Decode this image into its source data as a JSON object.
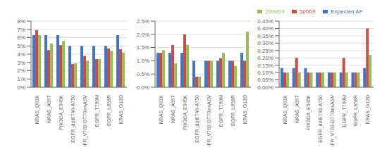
{
  "chart_data": [
    {
      "type": "bar",
      "categories": [
        "NRAS_Q61K",
        "NRAS_A59T",
        "PIK3CA_E545K",
        "EGFR_delE746-A750",
        "EGFR_V769-D770insASV",
        "EGFR_T790M",
        "EGFR_L858R",
        "KRAS_G12D"
      ],
      "series": [
        {
          "name": "Expected AF",
          "color": "#4472C4",
          "values": [
            0.063,
            0.063,
            0.063,
            0.05,
            0.05,
            0.05,
            0.05,
            0.063
          ]
        },
        {
          "name": "5000X",
          "color": "#C0504D",
          "values": [
            0.069,
            0.045,
            0.051,
            0.028,
            0.038,
            0.034,
            0.047,
            0.046
          ]
        },
        {
          "name": "20000X",
          "color": "#9BBB59",
          "values": [
            0.063,
            0.053,
            0.056,
            0.029,
            0.032,
            0.034,
            0.044,
            0.042
          ]
        }
      ],
      "ylim": [
        0,
        0.08
      ],
      "yticks": [
        {
          "value": 0,
          "label": "0%"
        },
        {
          "value": 0.01,
          "label": "1%"
        },
        {
          "value": 0.02,
          "label": "2%"
        },
        {
          "value": 0.03,
          "label": "3%"
        },
        {
          "value": 0.04,
          "label": "4%"
        },
        {
          "value": 0.05,
          "label": "5%"
        },
        {
          "value": 0.06,
          "label": "6%"
        },
        {
          "value": 0.07,
          "label": "7%"
        },
        {
          "value": 0.08,
          "label": "8%"
        }
      ],
      "grid": true
    },
    {
      "type": "bar",
      "categories": [
        "NRAS_Q61K",
        "NRAS_A59T",
        "PIK3CA_E545K",
        "EGFR_delE746-A750",
        "EGFR_V769-D770insASV",
        "EGFR_T790M",
        "EGFR_L858R",
        "KRAS_G12D"
      ],
      "series": [
        {
          "name": "Expected AF",
          "color": "#4472C4",
          "values": [
            0.013,
            0.013,
            0.013,
            0.01,
            0.01,
            0.01,
            0.01,
            0.013
          ]
        },
        {
          "name": "5000X",
          "color": "#C0504D",
          "values": [
            0.013,
            0.016,
            0.02,
            0.004,
            0.01,
            0.011,
            0.01,
            0.01
          ]
        },
        {
          "name": "20000X",
          "color": "#9BBB59",
          "values": [
            0.014,
            0.009,
            0.016,
            0.004,
            0.01,
            0.013,
            0.008,
            0.021
          ]
        }
      ],
      "ylim": [
        0,
        0.025
      ],
      "yticks": [
        {
          "value": 0,
          "label": "0.0%"
        },
        {
          "value": 0.005,
          "label": "0.5%"
        },
        {
          "value": 0.01,
          "label": "1.0%"
        },
        {
          "value": 0.015,
          "label": "1.5%"
        },
        {
          "value": 0.02,
          "label": "2.0%"
        },
        {
          "value": 0.025,
          "label": "2.5%"
        }
      ],
      "grid": true
    },
    {
      "type": "bar",
      "categories": [
        "NRAS_Q61K",
        "NRAS_A59T",
        "PIK3CA_E545K",
        "EGFR_delE746-A750",
        "EGFR_V769-D770insASV",
        "EGFR_T790M",
        "EGFR_L858R",
        "KRAS_G12D"
      ],
      "series": [
        {
          "name": "Expected AF",
          "color": "#4472C4",
          "values": [
            0.0013,
            0.0013,
            0.0013,
            0.001,
            0.001,
            0.001,
            0.001,
            0.0013
          ]
        },
        {
          "name": "5000X",
          "color": "#C0504D",
          "values": [
            0.001,
            0.002,
            0.001,
            0.001,
            0.001,
            0.002,
            0.001,
            0.004
          ]
        },
        {
          "name": "20000X",
          "color": "#9BBB59",
          "values": [
            0.001,
            0.001,
            0.001,
            0.001,
            0.001,
            0.001,
            0.001,
            0.0022
          ]
        }
      ],
      "ylim": [
        0,
        0.0045
      ],
      "yticks": [
        {
          "value": 0,
          "label": "0.00%"
        },
        {
          "value": 0.0005,
          "label": "0.05%"
        },
        {
          "value": 0.001,
          "label": "0.10%"
        },
        {
          "value": 0.0015,
          "label": "0.15%"
        },
        {
          "value": 0.002,
          "label": "0.20%"
        },
        {
          "value": 0.0025,
          "label": "0.25%"
        },
        {
          "value": 0.003,
          "label": "0.30%"
        },
        {
          "value": 0.0035,
          "label": "0.35%"
        },
        {
          "value": 0.004,
          "label": "0.40%"
        },
        {
          "value": 0.0045,
          "label": "0.45%"
        }
      ],
      "grid": true,
      "legend": "top"
    }
  ]
}
